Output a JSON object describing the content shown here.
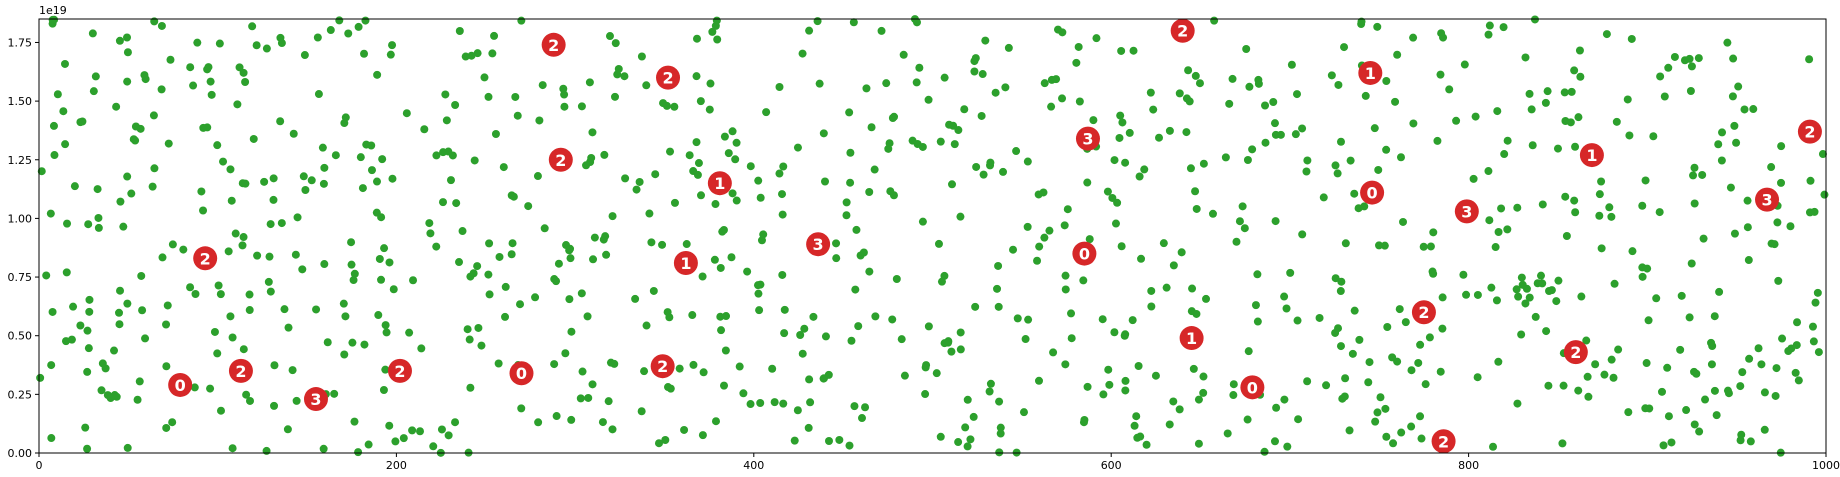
{
  "chart_data": {
    "type": "scatter",
    "title": "",
    "xlabel": "",
    "ylabel": "",
    "offset_label": "1e19",
    "xlim": [
      0,
      1000
    ],
    "ylim": [
      0,
      1.85
    ],
    "y_scale_factor": 1e+19,
    "x_ticks": [
      0,
      200,
      400,
      600,
      800,
      1000
    ],
    "y_ticks": [
      0.0,
      0.25,
      0.5,
      0.75,
      1.0,
      1.25,
      1.5,
      1.75
    ],
    "x_tick_labels": [
      "0",
      "200",
      "400",
      "600",
      "800",
      "1000"
    ],
    "y_tick_labels": [
      "0.00",
      "0.25",
      "0.50",
      "0.75",
      "1.00",
      "1.25",
      "1.50",
      "1.75"
    ],
    "grid": false,
    "point_color": "#2ca02c",
    "marker_color": "#d62728",
    "marker_text_color": "#ffffff",
    "green_series": {
      "description_note": "",
      "count": 1000,
      "seed": 7
    },
    "markers": [
      {
        "x": 79,
        "y": 0.29,
        "label": "0"
      },
      {
        "x": 93,
        "y": 0.83,
        "label": "2"
      },
      {
        "x": 113,
        "y": 0.35,
        "label": "2"
      },
      {
        "x": 155,
        "y": 0.23,
        "label": "3"
      },
      {
        "x": 202,
        "y": 0.35,
        "label": "2"
      },
      {
        "x": 270,
        "y": 0.34,
        "label": "0"
      },
      {
        "x": 288,
        "y": 1.74,
        "label": "2"
      },
      {
        "x": 292,
        "y": 1.25,
        "label": "2"
      },
      {
        "x": 349,
        "y": 0.37,
        "label": "2"
      },
      {
        "x": 352,
        "y": 1.6,
        "label": "2"
      },
      {
        "x": 362,
        "y": 0.81,
        "label": "1"
      },
      {
        "x": 381,
        "y": 1.15,
        "label": "1"
      },
      {
        "x": 436,
        "y": 0.89,
        "label": "3"
      },
      {
        "x": 585,
        "y": 0.85,
        "label": "0"
      },
      {
        "x": 587,
        "y": 1.34,
        "label": "3"
      },
      {
        "x": 640,
        "y": 1.8,
        "label": "2"
      },
      {
        "x": 645,
        "y": 0.49,
        "label": "1"
      },
      {
        "x": 679,
        "y": 0.28,
        "label": "0"
      },
      {
        "x": 745,
        "y": 1.62,
        "label": "1"
      },
      {
        "x": 746,
        "y": 1.11,
        "label": "0"
      },
      {
        "x": 775,
        "y": 0.6,
        "label": "2"
      },
      {
        "x": 786,
        "y": 0.05,
        "label": "2"
      },
      {
        "x": 799,
        "y": 1.03,
        "label": "3"
      },
      {
        "x": 860,
        "y": 0.43,
        "label": "2"
      },
      {
        "x": 869,
        "y": 1.27,
        "label": "1"
      },
      {
        "x": 967,
        "y": 1.08,
        "label": "3"
      },
      {
        "x": 991,
        "y": 1.37,
        "label": "2"
      }
    ]
  }
}
